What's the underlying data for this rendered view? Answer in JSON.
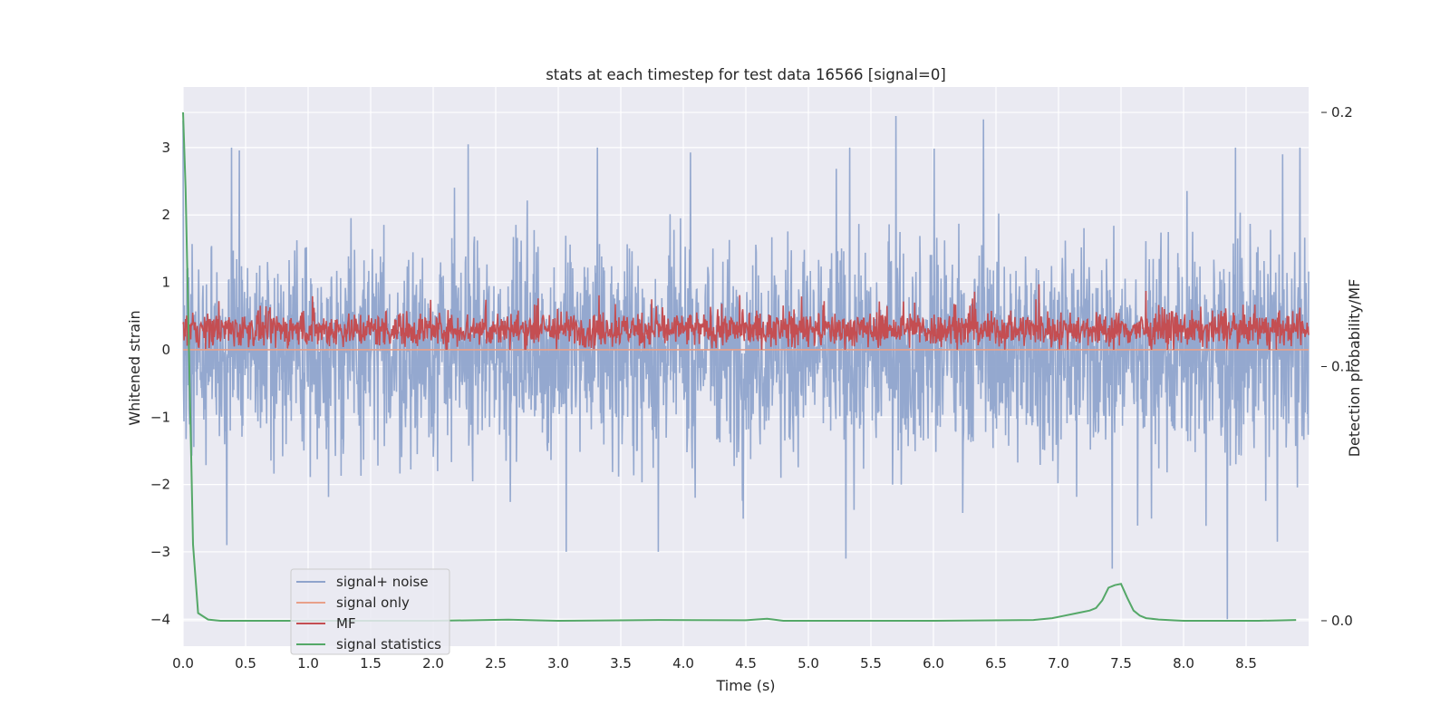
{
  "chart_data": {
    "type": "line",
    "title": "stats at each timestep for test data 16566 [signal=0]",
    "xlabel": "Time (s)",
    "ylabel": "Whitened strain",
    "ylabel_right": "Detection probability/MF",
    "xlim": [
      0.0,
      9.0
    ],
    "ylim": [
      -4.4,
      3.9
    ],
    "ylim_right": [
      -0.01,
      0.21
    ],
    "x_ticks": [
      "0.0",
      "0.5",
      "1.0",
      "1.5",
      "2.0",
      "2.5",
      "3.0",
      "3.5",
      "4.0",
      "4.5",
      "5.0",
      "5.5",
      "6.0",
      "6.5",
      "7.0",
      "7.5",
      "8.0",
      "8.5"
    ],
    "y_ticks": [
      "−4",
      "−3",
      "−2",
      "−1",
      "0",
      "1",
      "2",
      "3"
    ],
    "y_ticks_right": [
      "0.0",
      "0.1",
      "0.2"
    ],
    "grid": true,
    "legend_position": "lower-left",
    "series": [
      {
        "name": "signal+ noise",
        "axis": "left",
        "color": "#8fa4cc",
        "style": "dense noise band roughly ±1 with spikes to ±3",
        "envelope": {
          "typical_min": -1.5,
          "typical_max": 1.5,
          "max": 3.47,
          "min": -4.0
        },
        "notable_points": [
          {
            "x": 0.0,
            "y": 3.4
          },
          {
            "x": 0.35,
            "y": -2.9
          },
          {
            "x": 2.28,
            "y": 3.05
          },
          {
            "x": 3.8,
            "y": -3.0
          },
          {
            "x": 5.3,
            "y": -3.1
          },
          {
            "x": 5.7,
            "y": 3.47
          },
          {
            "x": 6.4,
            "y": 3.42
          },
          {
            "x": 7.43,
            "y": -3.25
          },
          {
            "x": 8.35,
            "y": -4.0
          },
          {
            "x": 8.75,
            "y": -2.85
          }
        ]
      },
      {
        "name": "signal only",
        "axis": "left",
        "color": "#e8a08a",
        "values_note": "flat at 0 (signal=0)",
        "x": [
          0.0,
          9.0
        ],
        "y": [
          0.0,
          0.0
        ]
      },
      {
        "name": "MF",
        "axis": "left",
        "color": "#c44e52",
        "style": "dense band between 0 and ~0.8",
        "envelope": {
          "typical_min": 0.0,
          "typical_max": 0.7,
          "max": 1.0,
          "min": 0.0
        }
      },
      {
        "name": "signal statistics",
        "axis": "right",
        "color": "#55a868",
        "x": [
          0.0,
          0.02,
          0.05,
          0.08,
          0.12,
          0.2,
          0.3,
          0.5,
          1.0,
          2.0,
          2.6,
          3.0,
          3.8,
          4.5,
          4.67,
          4.8,
          6.0,
          6.8,
          6.95,
          7.05,
          7.15,
          7.25,
          7.3,
          7.35,
          7.4,
          7.45,
          7.5,
          7.55,
          7.6,
          7.65,
          7.7,
          7.8,
          8.0,
          8.3,
          8.6,
          8.9
        ],
        "y": [
          0.2,
          0.17,
          0.1,
          0.03,
          0.003,
          0.0005,
          0.0,
          0.0,
          0.0,
          0.0,
          0.0004,
          0.0,
          0.0003,
          0.0002,
          0.0008,
          0.0,
          0.0,
          0.0003,
          0.001,
          0.002,
          0.003,
          0.004,
          0.005,
          0.008,
          0.013,
          0.014,
          0.0145,
          0.009,
          0.004,
          0.002,
          0.001,
          0.0005,
          0.0,
          0.0,
          0.0,
          0.0003
        ]
      }
    ]
  }
}
